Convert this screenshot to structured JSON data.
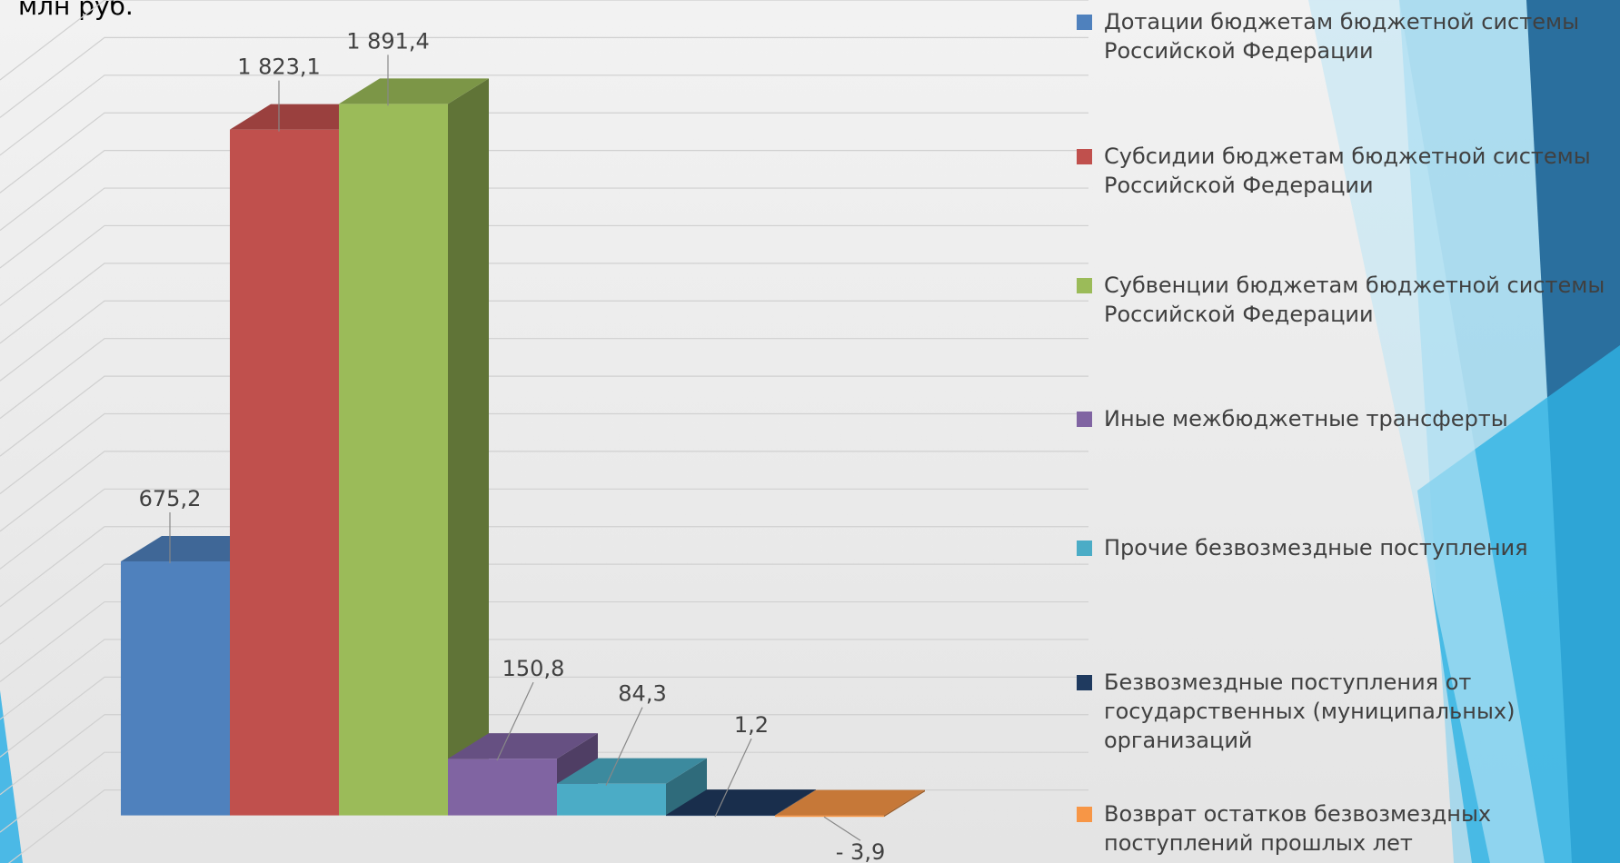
{
  "chart_data": {
    "type": "bar",
    "title": "млн руб.",
    "series": [
      {
        "name": "Дотации бюджетам бюджетной системы Российской Федерации",
        "color": "#4f81bd",
        "values": [
          675.2
        ],
        "value_labels": [
          "675,2"
        ]
      },
      {
        "name": "Субсидии бюджетам бюджетной системы Российской Федерации",
        "color": "#c0504d",
        "values": [
          1823.1
        ],
        "value_labels": [
          "1 823,1"
        ]
      },
      {
        "name": "Субвенции бюджетам бюджетной системы Российской Федерации",
        "color": "#9bbb59",
        "values": [
          1891.4
        ],
        "value_labels": [
          "1 891,4"
        ]
      },
      {
        "name": "Иные межбюджетные трансферты",
        "color": "#8064a2",
        "values": [
          150.8
        ],
        "value_labels": [
          "150,8"
        ]
      },
      {
        "name": "Прочие безвозмездные поступления",
        "color": "#4bacc6",
        "values": [
          84.3
        ],
        "value_labels": [
          "84,3"
        ]
      },
      {
        "name": "Безвозмездные  поступления от государственных (муниципальных) организаций",
        "color": "#1f3a5f",
        "values": [
          1.2
        ],
        "value_labels": [
          "1,2"
        ]
      },
      {
        "name": "Возврат остатков безвозмездных поступлений прошлых лет",
        "color": "#f79646",
        "values": [
          -3.9
        ],
        "value_labels": [
          "- 3,9"
        ]
      }
    ],
    "ylim": [
      -100,
      2100
    ],
    "yticks": [
      0,
      100,
      200,
      300,
      400,
      500,
      600,
      700,
      800,
      900,
      1000,
      1100,
      1200,
      1300,
      1400,
      1500,
      1600,
      1700,
      1800,
      1900,
      2000,
      2100
    ],
    "grid": true
  }
}
